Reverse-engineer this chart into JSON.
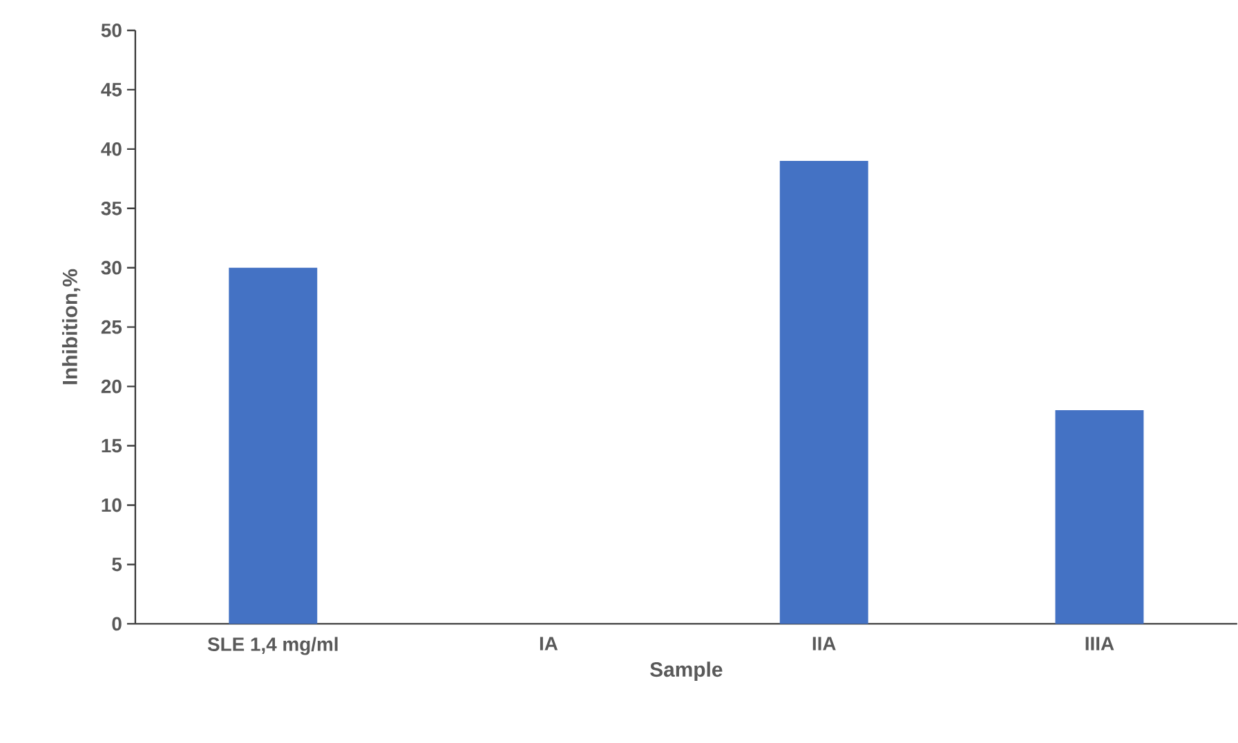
{
  "chart_data": {
    "type": "bar",
    "xlabel": "Sample",
    "ylabel": "Inhibition,%",
    "categories": [
      "SLE 1,4 mg/ml",
      "IA",
      "IIA",
      "IIIA"
    ],
    "values": [
      30,
      0,
      39,
      18
    ],
    "color": "#4472c4",
    "ylim": [
      0,
      50
    ],
    "yticks": [
      0,
      5,
      10,
      15,
      20,
      25,
      30,
      35,
      40,
      45,
      50
    ],
    "grid": false
  }
}
